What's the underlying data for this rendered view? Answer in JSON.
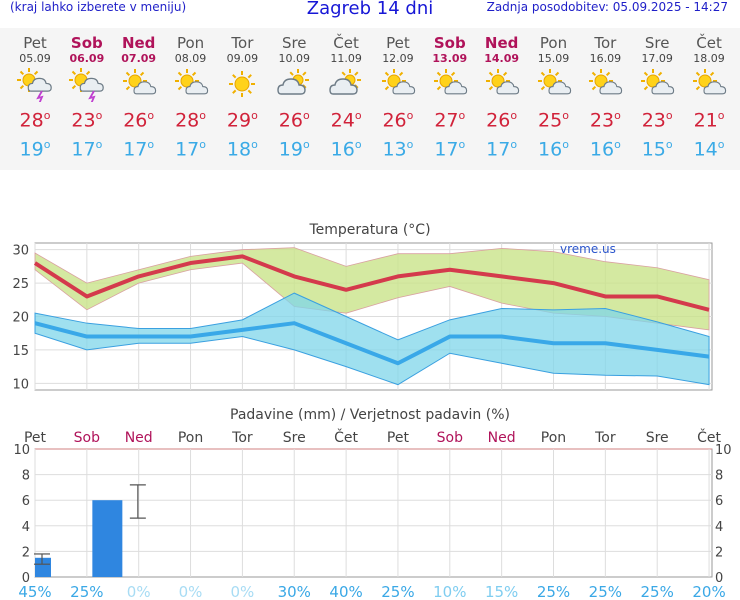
{
  "header": {
    "menu_hint": "(kraj lahko izberete v meniju)",
    "title": "Zagreb 14 dni",
    "updated": "Zadnja posodobitev: 05.09.2025 - 14:27"
  },
  "days": [
    {
      "name": "Pet",
      "date": "05.09",
      "icon": "sun-cloud-thunder-icon",
      "max": "28",
      "min": "19",
      "weekend": false
    },
    {
      "name": "Sob",
      "date": "06.09",
      "icon": "sun-cloud-thunder-icon",
      "max": "23",
      "min": "17",
      "weekend": true
    },
    {
      "name": "Ned",
      "date": "07.09",
      "icon": "sun-cloud-icon",
      "max": "26",
      "min": "17",
      "weekend": true
    },
    {
      "name": "Pon",
      "date": "08.09",
      "icon": "sun-cloud-icon",
      "max": "28",
      "min": "17",
      "weekend": false
    },
    {
      "name": "Tor",
      "date": "09.09",
      "icon": "sun-icon",
      "max": "29",
      "min": "18",
      "weekend": false
    },
    {
      "name": "Sre",
      "date": "10.09",
      "icon": "cloud-sun-icon",
      "max": "26",
      "min": "19",
      "weekend": false
    },
    {
      "name": "Čet",
      "date": "11.09",
      "icon": "cloud-sun-icon",
      "max": "24",
      "min": "16",
      "weekend": false
    },
    {
      "name": "Pet",
      "date": "12.09",
      "icon": "sun-cloud-icon",
      "max": "26",
      "min": "13",
      "weekend": false
    },
    {
      "name": "Sob",
      "date": "13.09",
      "icon": "sun-cloud-icon",
      "max": "27",
      "min": "17",
      "weekend": true
    },
    {
      "name": "Ned",
      "date": "14.09",
      "icon": "sun-cloud-icon",
      "max": "26",
      "min": "17",
      "weekend": true
    },
    {
      "name": "Pon",
      "date": "15.09",
      "icon": "sun-cloud-icon",
      "max": "25",
      "min": "16",
      "weekend": false
    },
    {
      "name": "Tor",
      "date": "16.09",
      "icon": "sun-cloud-icon",
      "max": "23",
      "min": "16",
      "weekend": false
    },
    {
      "name": "Sre",
      "date": "17.09",
      "icon": "sun-cloud-icon",
      "max": "23",
      "min": "15",
      "weekend": false
    },
    {
      "name": "Čet",
      "date": "18.09",
      "icon": "sun-cloud-icon",
      "max": "21",
      "min": "14",
      "weekend": false
    }
  ],
  "chart_data": [
    {
      "type": "line",
      "title": "Temperatura (°C)",
      "watermark": "vreme.us",
      "ylim": [
        9,
        31
      ],
      "yticks": [
        10,
        15,
        20,
        25,
        30
      ],
      "series": [
        {
          "values": [
            28,
            23,
            26,
            28,
            29,
            26,
            24,
            26,
            27,
            26,
            25,
            23,
            23,
            21
          ],
          "color": "#d43a4c"
        },
        {
          "values": [
            19,
            17,
            17,
            17,
            18,
            19,
            16,
            13,
            17,
            17,
            16,
            16,
            15,
            14
          ],
          "color": "#39a8e8"
        }
      ],
      "max_band_upper": [
        29.5,
        25,
        27,
        29,
        30,
        30.3,
        27.5,
        29.4,
        29.4,
        30.2,
        29.7,
        28.2,
        27.3,
        25.5
      ],
      "max_band_lower": [
        27,
        21,
        25,
        27,
        28,
        21.5,
        20.5,
        22.8,
        24.5,
        22,
        20.5,
        20,
        19,
        18
      ],
      "min_band_upper": [
        20.5,
        19,
        18.2,
        18.2,
        19.5,
        23.5,
        20,
        16.5,
        19.5,
        21.2,
        21,
        21.2,
        19.2,
        17
      ],
      "min_band_lower": [
        17.5,
        15,
        16,
        16,
        17,
        15,
        12.5,
        9.8,
        14.5,
        13,
        11.5,
        11.2,
        11.1,
        9.8
      ],
      "grid": true
    },
    {
      "type": "bar",
      "title": "Padavine (mm) / Verjetnost padavin (%)",
      "ylim": [
        0,
        10
      ],
      "yticks": [
        0,
        2,
        4,
        6,
        8,
        10
      ],
      "values": [
        1.5,
        6,
        0,
        0,
        0,
        0,
        0,
        0,
        0,
        0,
        0,
        0,
        0,
        0
      ],
      "errors": [
        [
          1,
          1.8
        ],
        [
          4.6,
          7.2
        ],
        null,
        null,
        null,
        null,
        null,
        null,
        null,
        null,
        null,
        null,
        null,
        null
      ],
      "probability": [
        "45%",
        "25%",
        "0%",
        "0%",
        "0%",
        "30%",
        "40%",
        "25%",
        "10%",
        "15%",
        "25%",
        "25%",
        "25%",
        "20%"
      ],
      "bar_color": "#2f86e0"
    }
  ],
  "colors": {
    "max_temp": "#d1223a",
    "min_temp": "#3aaae6",
    "weekend": "#b0135a",
    "title": "#1717d6"
  }
}
